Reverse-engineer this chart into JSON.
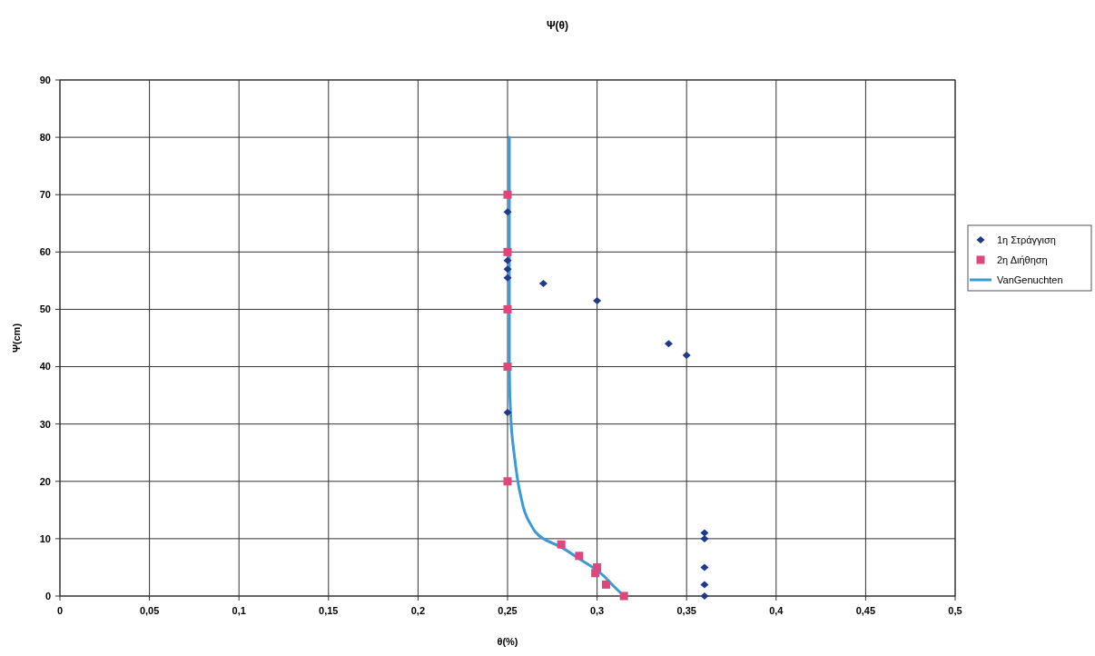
{
  "chart_data": {
    "type": "scatter",
    "title": "Ψ(θ)",
    "xlabel": "θ(%)",
    "ylabel": "Ψ(cm)",
    "xlim": [
      0,
      0.5
    ],
    "xticks": [
      {
        "value": 0,
        "label": "0"
      },
      {
        "value": 0.05,
        "label": "0,05"
      },
      {
        "value": 0.1,
        "label": "0,1"
      },
      {
        "value": 0.15,
        "label": "0,15"
      },
      {
        "value": 0.2,
        "label": "0,2"
      },
      {
        "value": 0.25,
        "label": "0,25"
      },
      {
        "value": 0.3,
        "label": "0,3"
      },
      {
        "value": 0.35,
        "label": "0,35"
      },
      {
        "value": 0.4,
        "label": "0,4"
      },
      {
        "value": 0.45,
        "label": "0,45"
      },
      {
        "value": 0.5,
        "label": "0,5"
      }
    ],
    "ylim": [
      0,
      90
    ],
    "yticks": [
      0,
      10,
      20,
      30,
      40,
      50,
      60,
      70,
      80,
      90
    ],
    "grid": true,
    "legend": "right",
    "series": [
      {
        "name": "1η Στράγγιση",
        "color": "#1f3a8a",
        "marker": "diamond",
        "x": [
          0.25,
          0.25,
          0.25,
          0.25,
          0.27,
          0.3,
          0.34,
          0.35,
          0.25,
          0.36,
          0.36,
          0.36,
          0.36,
          0.36
        ],
        "values": [
          67,
          58.5,
          57,
          55.5,
          54.5,
          51.5,
          44,
          42,
          32,
          11,
          10,
          5,
          2,
          0
        ]
      },
      {
        "name": "2η Διήθηση",
        "color": "#e0457b",
        "marker": "square",
        "x": [
          0.25,
          0.25,
          0.25,
          0.25,
          0.25,
          0.28,
          0.29,
          0.3,
          0.299,
          0.305,
          0.315
        ],
        "values": [
          70,
          60,
          50,
          40,
          20,
          9,
          7,
          5,
          4,
          2,
          0
        ]
      },
      {
        "name": "VanGenuchten",
        "type": "line",
        "color": "#3a9ad9",
        "marker": "none",
        "x": [
          0.315,
          0.31,
          0.3,
          0.29,
          0.28,
          0.27,
          0.262,
          0.257,
          0.254,
          0.252,
          0.251,
          0.251
        ],
        "values": [
          0,
          1.5,
          4.5,
          6.5,
          8.5,
          10,
          13,
          18,
          24,
          30,
          40,
          80
        ]
      }
    ]
  }
}
